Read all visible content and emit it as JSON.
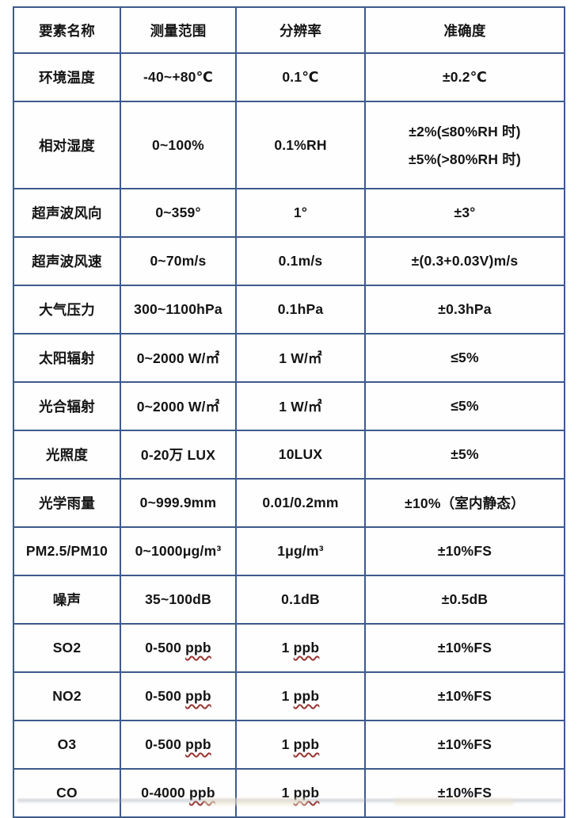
{
  "table": {
    "border_color": "#3d5a8c",
    "text_color": "#141414",
    "squiggle_color": "#993531",
    "columns": [
      "要素名称",
      "测量范围",
      "分辨率",
      "准确度"
    ],
    "rows": [
      {
        "name": "环境温度",
        "range": "-40~+80℃",
        "resolution": "0.1℃",
        "accuracy": "±0.2℃"
      },
      {
        "name": "相对湿度",
        "range": "0~100%",
        "resolution": "0.1%RH",
        "accuracy_lines": [
          "±2%(≤80%RH 时)",
          "±5%(>80%RH 时)"
        ]
      },
      {
        "name": "超声波风向",
        "range": "0~359°",
        "resolution": "1°",
        "accuracy": "±3°"
      },
      {
        "name": "超声波风速",
        "range": "0~70m/s",
        "resolution": "0.1m/s",
        "accuracy": "±(0.3+0.03V)m/s"
      },
      {
        "name": "大气压力",
        "range": "300~1100hPa",
        "resolution": "0.1hPa",
        "accuracy": "±0.3hPa"
      },
      {
        "name": "太阳辐射",
        "range": "0~2000 W/㎡",
        "resolution": "1 W/㎡",
        "accuracy": "≤5%"
      },
      {
        "name": "光合辐射",
        "range": "0~2000 W/㎡",
        "resolution": "1 W/㎡",
        "accuracy": "≤5%"
      },
      {
        "name": "光照度",
        "range": "0-20万 LUX",
        "resolution": "10LUX",
        "accuracy": "±5%"
      },
      {
        "name": "光学雨量",
        "range": "0~999.9mm",
        "resolution": "0.01/0.2mm",
        "accuracy": "±10%（室内静态）"
      },
      {
        "name": "PM2.5/PM10",
        "range": "0~1000μg/m³",
        "resolution": "1μg/m³",
        "accuracy": "±10%FS"
      },
      {
        "name": "噪声",
        "range": "35~100dB",
        "resolution": "0.1dB",
        "accuracy": "±0.5dB"
      },
      {
        "name": "SO2",
        "range": "0-500 ppb",
        "resolution": "1 ppb",
        "accuracy": "±10%FS",
        "squiggle_unit": true
      },
      {
        "name": "NO2",
        "range": "0-500 ppb",
        "resolution": "1 ppb",
        "accuracy": "±10%FS",
        "squiggle_unit": true
      },
      {
        "name": "O3",
        "range": "0-500 ppb",
        "resolution": "1 ppb",
        "accuracy": "±10%FS",
        "squiggle_unit": true
      },
      {
        "name": "CO",
        "range": "0-4000 ppb",
        "resolution": "1 ppb",
        "accuracy": "±10%FS",
        "squiggle_unit": true
      }
    ]
  }
}
